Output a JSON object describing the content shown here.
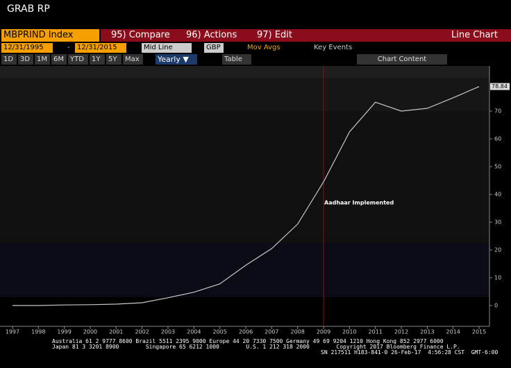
{
  "header": {
    "title": "GRAB RP"
  },
  "toolbar": {
    "security": "MBPRIND Index",
    "compare": "95) Compare",
    "actions": "96) Actions",
    "edit": "97) Edit",
    "view": "Line Chart"
  },
  "settings": {
    "start": "12/31/1995",
    "dash": "-",
    "end": "12/31/2015",
    "style": "Mid Line",
    "currency": "GBP",
    "mov_avgs": "Mov Avgs",
    "key_events": "Key Events"
  },
  "periods": {
    "buttons": [
      "1D",
      "3D",
      "1M",
      "6M",
      "YTD",
      "1Y",
      "5Y",
      "Max"
    ],
    "frequency": "Yearly ▼",
    "table": "Table",
    "chart_content": "Chart Content"
  },
  "chart_data": {
    "type": "line",
    "x": [
      1997,
      1998,
      1999,
      2000,
      2001,
      2002,
      2003,
      2004,
      2005,
      2006,
      2007,
      2008,
      2009,
      2010,
      2011,
      2012,
      2013,
      2014,
      2015
    ],
    "series": [
      {
        "color": "#c8c8c8",
        "values": [
          0,
          0,
          0.2,
          0.3,
          0.5,
          1,
          2.8,
          4.8,
          7.8,
          14.5,
          20.5,
          29.3,
          44.5,
          62.5,
          73.2,
          70,
          71,
          74.8,
          78.84
        ]
      }
    ],
    "xlim": [
      1996.52,
      2015.4
    ],
    "ylim": [
      -7.5,
      86.25
    ],
    "xticks": [
      1997,
      1998,
      1999,
      2000,
      2001,
      2002,
      2003,
      2004,
      2005,
      2006,
      2007,
      2008,
      2009,
      2010,
      2011,
      2012,
      2013,
      2014,
      2015
    ],
    "yticks": [
      0,
      10,
      20,
      30,
      40,
      50,
      60,
      70
    ],
    "events": [
      {
        "x": 2009,
        "label": "Aadhaar Implemented",
        "color": "#8b1020"
      }
    ]
  },
  "footer": [
    "Australia 61 2 9777 8600 Brazil 5511 2395 9000 Europe 44 20 7330 7500 Germany 49 69 9204 1210 Hong Kong 852 2977 6000",
    "Japan 81 3 3201 8900        Singapore 65 6212 1000        U.S. 1 212 318 2000        Copyright 2017 Bloomberg Finance L.P.",
    "SN 217511 H183-841-0 26-Feb-17  4:56:28 CST  GMT-6:00"
  ]
}
